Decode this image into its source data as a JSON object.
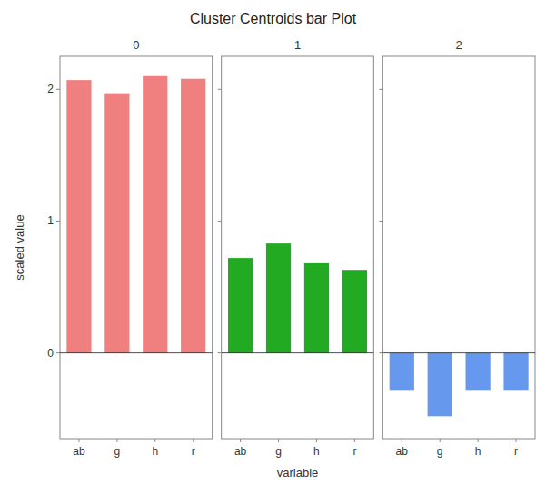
{
  "title": "Cluster Centroids bar Plot",
  "chart_data": [
    {
      "type": "bar",
      "title": "0",
      "ylabel": "scaled value",
      "categories": [
        "ab",
        "g",
        "h",
        "r"
      ],
      "values": [
        2.07,
        1.97,
        2.1,
        2.08
      ],
      "color": "#F08080",
      "ylim": [
        -0.65,
        2.25
      ],
      "yticks": [
        0,
        1,
        2
      ],
      "grid": false
    },
    {
      "type": "bar",
      "title": "1",
      "xlabel": "variable",
      "categories": [
        "ab",
        "g",
        "h",
        "r"
      ],
      "values": [
        0.72,
        0.83,
        0.68,
        0.63
      ],
      "color": "#22AA22",
      "ylim": [
        -0.65,
        2.25
      ],
      "yticks": [
        0,
        1,
        2
      ],
      "grid": false,
      "tick_labels": "x"
    },
    {
      "type": "bar",
      "title": "2",
      "categories": [
        "ab",
        "g",
        "h",
        "r"
      ],
      "values": [
        -0.28,
        -0.48,
        -0.28,
        -0.28
      ],
      "color": "#6699EE",
      "ylim": [
        -0.65,
        2.25
      ],
      "yticks": [
        0,
        1,
        2
      ],
      "grid": false,
      "tick_labels": "x"
    }
  ]
}
